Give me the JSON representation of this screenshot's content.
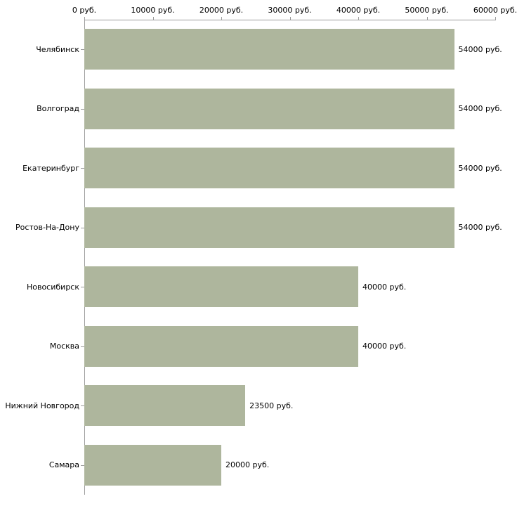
{
  "chart_data": {
    "type": "bar",
    "orientation": "horizontal",
    "title": "",
    "xlabel": "",
    "ylabel": "",
    "categories": [
      "Челябинск",
      "Волгоград",
      "Екатеринбург",
      "Ростов-На-Дону",
      "Новосибирск",
      "Москва",
      "Нижний Новгород",
      "Самара"
    ],
    "values": [
      54000,
      54000,
      54000,
      54000,
      40000,
      40000,
      23500,
      20000
    ],
    "value_labels": [
      "54000 руб.",
      "54000 руб.",
      "54000 руб.",
      "54000 руб.",
      "40000 руб.",
      "40000 руб.",
      "23500 руб.",
      "20000 руб."
    ],
    "x_ticks": [
      0,
      10000,
      20000,
      30000,
      40000,
      50000,
      60000
    ],
    "x_tick_labels": [
      "0 руб.",
      "10000 руб.",
      "20000 руб.",
      "30000 руб.",
      "40000 руб.",
      "50000 руб.",
      "60000 руб."
    ],
    "xlim": [
      0,
      60000
    ],
    "grid": false,
    "legend": false,
    "bar_color": "#aeb69d",
    "axis_color": "#9a9a9a"
  }
}
